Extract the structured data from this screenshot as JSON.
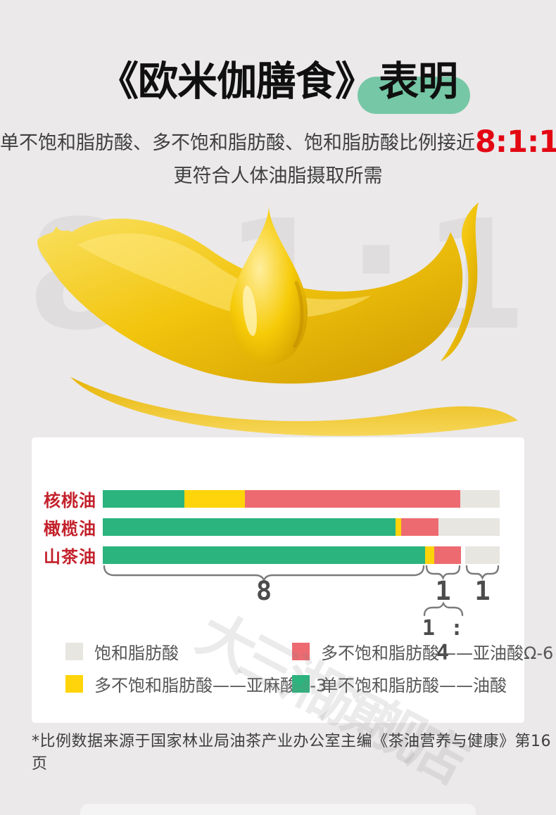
{
  "header": {
    "title_book": "《欧米伽膳食》",
    "title_suffix": "表明",
    "highlight_color": "#76c7a6",
    "subtitle_prefix": "单不饱和脂肪酸、多不饱和脂肪酸、饱和脂肪酸比例接近",
    "subtitle_ratio": "8:1:1",
    "ratio_color": "#e30613",
    "subtitle_line2": "更符合人体油脂摄取所需"
  },
  "watermarks": {
    "background_ratio_chars": [
      "8",
      ":",
      "1",
      ":",
      "1"
    ],
    "store_name": "大三湘旗舰店"
  },
  "chart_data": {
    "type": "bar",
    "orientation": "horizontal-stacked",
    "unit": "percent of total fatty acids",
    "categories": [
      "核桃油",
      "橄榄油",
      "山茶油"
    ],
    "series": [
      {
        "name": "单不饱和脂肪酸——油酸",
        "color": "#2bb47e",
        "values": [
          20.6,
          73.8,
          81.2
        ]
      },
      {
        "name": "多不饱和脂肪酸——亚麻酸Ω-3",
        "color": "#ffd40a",
        "values": [
          15.2,
          1.4,
          2.3
        ]
      },
      {
        "name": "多不饱和脂肪酸——亚油酸Ω-6",
        "color": "#ed6b70",
        "values": [
          54.3,
          9.4,
          6.7
        ]
      },
      {
        "name": "饱和脂肪酸",
        "color": "#e8e6e1",
        "values": [
          9.9,
          15.4,
          8.7
        ]
      }
    ],
    "gap_before_saturated_pct": [
      0,
      0,
      1.1
    ],
    "category_label_color": "#c3212b",
    "annotations": {
      "group_labels": [
        "8",
        "1",
        "1"
      ],
      "sub_ratio": "1 : 4"
    },
    "legend_position": "bottom",
    "grid": false
  },
  "legend": [
    {
      "label": "饱和脂肪酸",
      "color": "#e8e6e1"
    },
    {
      "label": "多不饱和脂肪酸——亚油酸Ω-6",
      "color": "#ed6b70"
    },
    {
      "label": "多不饱和脂肪酸——亚麻酸Ω-3",
      "color": "#ffd40a"
    },
    {
      "label": "单不饱和脂肪酸——油酸",
      "color": "#2bb47e"
    }
  ],
  "footnote": "*比例数据来源于国家林业局油茶产业办公室主编《茶油营养与健康》第16页"
}
